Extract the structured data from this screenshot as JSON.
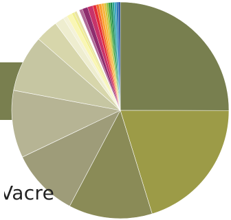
{
  "unit_label": "Vacre",
  "chart_data": {
    "type": "pie",
    "start_angle_deg": 0,
    "direction": "clockwise",
    "slices": [
      {
        "value": 25.1,
        "color": "#787f4f"
      },
      {
        "value": 20.3,
        "color": "#9c9b47"
      },
      {
        "value": 12.5,
        "color": "#8a8b57"
      },
      {
        "value": 10.2,
        "color": "#9e9c79"
      },
      {
        "value": 10.1,
        "color": "#b6b494"
      },
      {
        "value": 8.5,
        "color": "#c6c6a2"
      },
      {
        "value": 3.4,
        "color": "#d7d6ab"
      },
      {
        "value": 1.4,
        "color": "#eeedcf"
      },
      {
        "value": 0.6,
        "color": "#f4f2d8"
      },
      {
        "value": 0.8,
        "color": "#f9f6b4"
      },
      {
        "value": 0.4,
        "color": "#f1ef91"
      },
      {
        "value": 0.4,
        "color": "#e9e3a4"
      },
      {
        "value": 0.4,
        "color": "#ffffff"
      },
      {
        "value": 0.5,
        "color": "#b06a96"
      },
      {
        "value": 0.8,
        "color": "#8e2d6e"
      },
      {
        "value": 0.8,
        "color": "#c7336a"
      },
      {
        "value": 0.5,
        "color": "#e32b39"
      },
      {
        "value": 0.4,
        "color": "#f26b2d"
      },
      {
        "value": 0.4,
        "color": "#fb9f2f"
      },
      {
        "value": 0.4,
        "color": "#f7b63f"
      },
      {
        "value": 0.3,
        "color": "#d7c233"
      },
      {
        "value": 0.3,
        "color": "#96c13f"
      },
      {
        "value": 0.3,
        "color": "#3aa241"
      },
      {
        "value": 0.3,
        "color": "#1b8a4c"
      },
      {
        "value": 0.3,
        "color": "#2aa18e"
      },
      {
        "value": 0.3,
        "color": "#3aa3c3"
      },
      {
        "value": 0.3,
        "color": "#2d79b5"
      },
      {
        "value": 0.3,
        "color": "#2553a0"
      }
    ]
  }
}
